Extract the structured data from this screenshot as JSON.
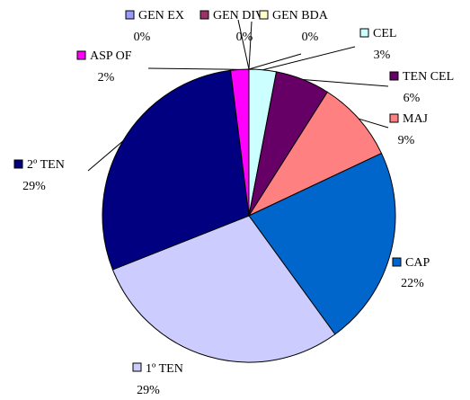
{
  "chart_data": {
    "type": "pie",
    "categories": [
      "GEN EX",
      "GEN DIV",
      "GEN BDA",
      "CEL",
      "TEN CEL",
      "MAJ",
      "CAP",
      "1º TEN",
      "2º TEN",
      "ASP OF"
    ],
    "values": [
      0,
      0,
      0,
      3,
      6,
      9,
      22,
      29,
      29,
      2
    ],
    "value_labels": [
      "0%",
      "0%",
      "0%",
      "3%",
      "6%",
      "9%",
      "22%",
      "29%",
      "29%",
      "2%"
    ],
    "colors": [
      "#9999ff",
      "#993366",
      "#ffffcc",
      "#ccffff",
      "#660066",
      "#ff8080",
      "#0066cc",
      "#ccccff",
      "#000080",
      "#ff00ff"
    ]
  }
}
